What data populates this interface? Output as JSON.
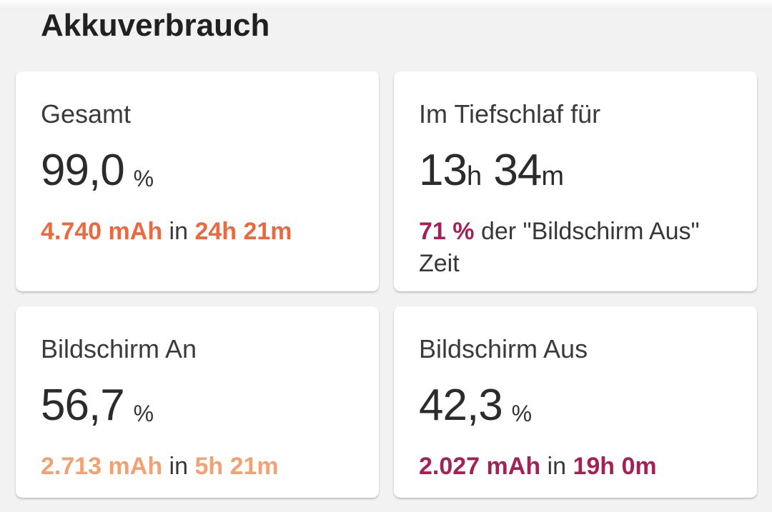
{
  "page": {
    "title": "Akkuverbrauch",
    "background_color": "#f2f2f3",
    "card_background_color": "#ffffff"
  },
  "colors": {
    "deep_orange": "#EC693D",
    "light_orange": "#F3A172",
    "magenta": "#A52057",
    "text_dark": "#2b2b2b"
  },
  "cards": [
    {
      "id": "gesamt",
      "label": "Gesamt",
      "accent_color": "#EC693D",
      "value_parts": [
        {
          "text": "99,0",
          "kind": "big"
        },
        {
          "text": "%",
          "kind": "unit"
        }
      ],
      "detail_parts": [
        {
          "text": "4.740 mAh",
          "kind": "accent"
        },
        {
          "text": " in ",
          "kind": "plain"
        },
        {
          "text": "24h 21m",
          "kind": "accent"
        }
      ]
    },
    {
      "id": "tiefschlaf",
      "label": "Im Tiefschlaf für",
      "accent_color": "#A52057",
      "value_parts": [
        {
          "text": "13",
          "kind": "big"
        },
        {
          "text": "h",
          "kind": "small"
        },
        {
          "text": " ",
          "kind": "big"
        },
        {
          "text": "34",
          "kind": "big"
        },
        {
          "text": "m",
          "kind": "small"
        }
      ],
      "detail_parts": [
        {
          "text": "71 %",
          "kind": "accent"
        },
        {
          "text": " der \"Bildschirm Aus\"",
          "kind": "plain"
        },
        {
          "kind": "break"
        },
        {
          "text": "Zeit",
          "kind": "plain"
        }
      ]
    },
    {
      "id": "bildschirm-an",
      "label": "Bildschirm An",
      "accent_color": "#F3A172",
      "value_parts": [
        {
          "text": "56,7",
          "kind": "big"
        },
        {
          "text": "%",
          "kind": "unit"
        }
      ],
      "detail_parts": [
        {
          "text": "2.713 mAh",
          "kind": "accent"
        },
        {
          "text": " in ",
          "kind": "plain"
        },
        {
          "text": "5h 21m",
          "kind": "accent"
        }
      ]
    },
    {
      "id": "bildschirm-aus",
      "label": "Bildschirm Aus",
      "accent_color": "#A52057",
      "value_parts": [
        {
          "text": "42,3",
          "kind": "big"
        },
        {
          "text": "%",
          "kind": "unit"
        }
      ],
      "detail_parts": [
        {
          "text": "2.027 mAh",
          "kind": "accent"
        },
        {
          "text": " in ",
          "kind": "plain"
        },
        {
          "text": "19h 0m",
          "kind": "accent"
        }
      ]
    }
  ]
}
